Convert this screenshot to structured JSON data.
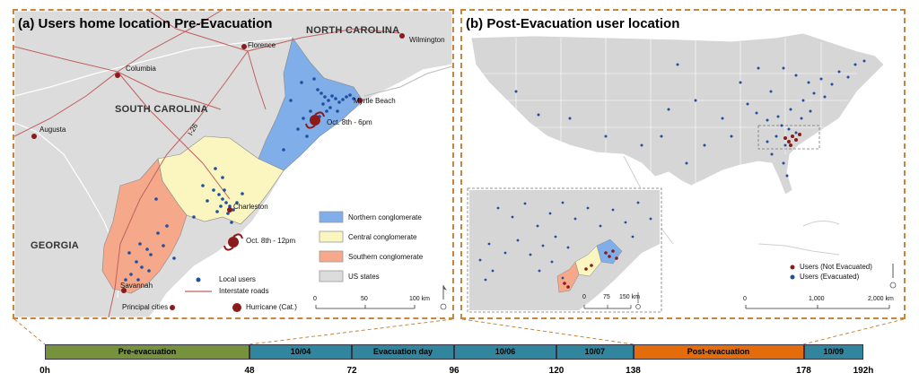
{
  "panel_a": {
    "title": "(a) Users home location Pre-Evacuation",
    "states": {
      "nc": "NORTH CAROLINA",
      "sc": "SOUTH CAROLINA",
      "ga": "GEORGIA"
    },
    "cities": {
      "florence": "Florence",
      "wilmington": "Wilmington",
      "columbia": "Columbia",
      "augusta": "Augusta",
      "myrtle": "Myrtle Beach",
      "charleston": "Charleston",
      "savannah": "Savannah"
    },
    "road": "I-26",
    "hurricane_1": "Oct. 8th - 6pm",
    "hurricane_2": "Oct. 8th - 12pm",
    "legend": {
      "northern": "Northern conglomerate",
      "central": "Central conglomerate",
      "southern": "Southern conglomerate",
      "us_states": "US states",
      "local_users": "Local users",
      "interstate": "Interstate roads",
      "principal": "Principal cities",
      "hurricane": "Hurricane (Cat.)"
    },
    "scale": {
      "s0": "0",
      "s1": "50",
      "s2": "100 km"
    },
    "colors": {
      "northern": "#7faee8",
      "central": "#fbf6bf",
      "southern": "#f6a88a",
      "states": "#dcdcdc",
      "users": "#1f4fa0",
      "cities": "#8b1a1a",
      "roads": "#c06060"
    }
  },
  "panel_b": {
    "title": "(b) Post-Evacuation user location",
    "legend": {
      "not_evac": "Users (Not Evacuated)",
      "evac": "Users (Evacuated)"
    },
    "inset_scale": {
      "s0": "0",
      "s1": "75",
      "s2": "150 km"
    },
    "scale": {
      "s0": "0",
      "s1": "1,000",
      "s2": "2,000 km"
    },
    "colors": {
      "not_evac": "#8b1a1a",
      "evac": "#1f4fa0",
      "land": "#d6d6d6"
    }
  },
  "timeline": {
    "segments": [
      {
        "label": "Pre-evacuation",
        "color": "#76923c"
      },
      {
        "label": "10/04",
        "color": "#31859c"
      },
      {
        "label": "Evacuation day",
        "color": "#31859c"
      },
      {
        "label": "10/06",
        "color": "#31859c"
      },
      {
        "label": "10/07",
        "color": "#31859c"
      },
      {
        "label": "Post-evacuation",
        "color": "#e46c0a"
      },
      {
        "label": "10/09",
        "color": "#31859c"
      }
    ],
    "ticks": [
      "0h",
      "48",
      "72",
      "96",
      "120",
      "138",
      "178",
      "192h"
    ],
    "tick_hours": [
      0,
      48,
      72,
      96,
      120,
      138,
      178,
      192
    ]
  }
}
